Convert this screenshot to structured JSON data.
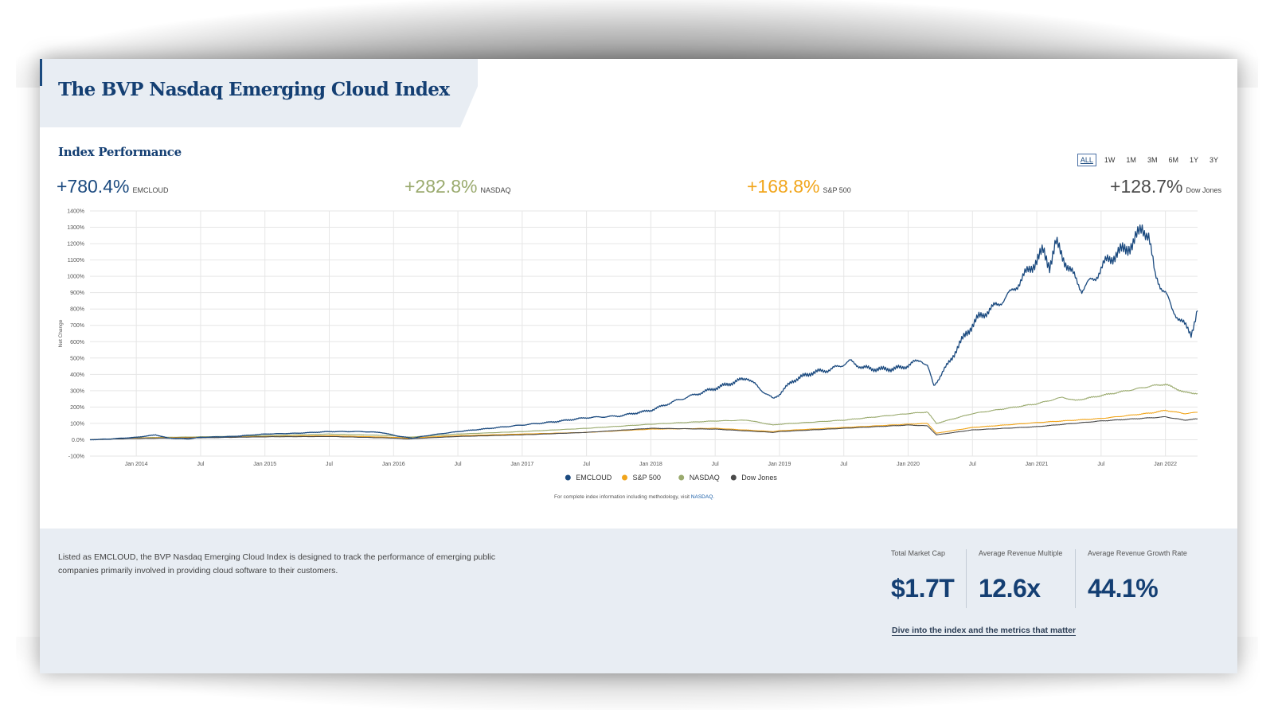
{
  "title": "The BVP Nasdaq Emerging Cloud Index",
  "section_title": "Index Performance",
  "ranges": [
    "ALL",
    "1W",
    "1M",
    "3M",
    "6M",
    "1Y",
    "3Y"
  ],
  "active_range": "ALL",
  "summary": [
    {
      "value": "+780.4%",
      "label": "EMCLOUD",
      "color": "#1b4a7f"
    },
    {
      "value": "+282.8%",
      "label": "NASDAQ",
      "color": "#9aaa6e"
    },
    {
      "value": "+168.8%",
      "label": "S&P 500",
      "color": "#f1a51b"
    },
    {
      "value": "+128.7%",
      "label": "Dow Jones",
      "color": "#4a4a4a"
    }
  ],
  "footnote": {
    "text": "For complete index information including methodology, visit ",
    "link": "NASDAQ."
  },
  "description": "Listed as EMCLOUD, the BVP Nasdaq Emerging Cloud Index is designed to track the performance of emerging public companies primarily involved in providing cloud software to their customers.",
  "metrics": [
    {
      "label": "Total Market Cap",
      "value": "$1.7T"
    },
    {
      "label": "Average Revenue Multiple",
      "value": "12.6x"
    },
    {
      "label": "Average Revenue Growth Rate",
      "value": "44.1%"
    }
  ],
  "cta": "Dive into the index and the metrics that matter",
  "chart_data": {
    "type": "line",
    "ylabel": "Net Change",
    "ylim": [
      -100,
      1400
    ],
    "yticks": [
      "1400%",
      "1300%",
      "1200%",
      "1100%",
      "1000%",
      "900%",
      "800%",
      "700%",
      "600%",
      "500%",
      "400%",
      "300%",
      "200%",
      "100%",
      "0.0%",
      "-100%"
    ],
    "xlim": [
      2013.64,
      2022.25
    ],
    "xticks": [
      {
        "x": 2014.0,
        "label": "Jan 2014"
      },
      {
        "x": 2014.5,
        "label": "Jul"
      },
      {
        "x": 2015.0,
        "label": "Jan 2015"
      },
      {
        "x": 2015.5,
        "label": "Jul"
      },
      {
        "x": 2016.0,
        "label": "Jan 2016"
      },
      {
        "x": 2016.5,
        "label": "Jul"
      },
      {
        "x": 2017.0,
        "label": "Jan 2017"
      },
      {
        "x": 2017.5,
        "label": "Jul"
      },
      {
        "x": 2018.0,
        "label": "Jan 2018"
      },
      {
        "x": 2018.5,
        "label": "Jul"
      },
      {
        "x": 2019.0,
        "label": "Jan 2019"
      },
      {
        "x": 2019.5,
        "label": "Jul"
      },
      {
        "x": 2020.0,
        "label": "Jan 2020"
      },
      {
        "x": 2020.5,
        "label": "Jul"
      },
      {
        "x": 2021.0,
        "label": "Jan 2021"
      },
      {
        "x": 2021.5,
        "label": "Jul"
      },
      {
        "x": 2022.0,
        "label": "Jan 2022"
      }
    ],
    "grid": true,
    "legend_position": "bottom-center",
    "series": [
      {
        "name": "EMCLOUD",
        "color": "#1b4a7f",
        "points": [
          [
            2013.64,
            0
          ],
          [
            2013.8,
            5
          ],
          [
            2014.0,
            15
          ],
          [
            2014.15,
            30
          ],
          [
            2014.25,
            10
          ],
          [
            2014.4,
            5
          ],
          [
            2014.5,
            15
          ],
          [
            2014.75,
            20
          ],
          [
            2015.0,
            35
          ],
          [
            2015.25,
            40
          ],
          [
            2015.5,
            50
          ],
          [
            2015.75,
            50
          ],
          [
            2015.9,
            45
          ],
          [
            2016.05,
            20
          ],
          [
            2016.15,
            10
          ],
          [
            2016.3,
            30
          ],
          [
            2016.5,
            50
          ],
          [
            2016.75,
            70
          ],
          [
            2017.0,
            90
          ],
          [
            2017.25,
            110
          ],
          [
            2017.5,
            135
          ],
          [
            2017.75,
            145
          ],
          [
            2018.0,
            180
          ],
          [
            2018.2,
            240
          ],
          [
            2018.4,
            290
          ],
          [
            2018.6,
            340
          ],
          [
            2018.75,
            380
          ],
          [
            2018.85,
            310
          ],
          [
            2018.95,
            250
          ],
          [
            2019.0,
            280
          ],
          [
            2019.1,
            360
          ],
          [
            2019.25,
            410
          ],
          [
            2019.4,
            430
          ],
          [
            2019.55,
            480
          ],
          [
            2019.65,
            440
          ],
          [
            2019.8,
            430
          ],
          [
            2019.95,
            440
          ],
          [
            2020.1,
            490
          ],
          [
            2020.15,
            450
          ],
          [
            2020.2,
            330
          ],
          [
            2020.3,
            450
          ],
          [
            2020.45,
            650
          ],
          [
            2020.55,
            750
          ],
          [
            2020.7,
            830
          ],
          [
            2020.8,
            900
          ],
          [
            2020.95,
            1050
          ],
          [
            2021.05,
            1150
          ],
          [
            2021.1,
            1070
          ],
          [
            2021.15,
            1200
          ],
          [
            2021.25,
            1050
          ],
          [
            2021.35,
            920
          ],
          [
            2021.45,
            990
          ],
          [
            2021.55,
            1100
          ],
          [
            2021.65,
            1150
          ],
          [
            2021.75,
            1200
          ],
          [
            2021.82,
            1300
          ],
          [
            2021.87,
            1250
          ],
          [
            2021.92,
            1000
          ],
          [
            2022.0,
            900
          ],
          [
            2022.05,
            800
          ],
          [
            2022.15,
            700
          ],
          [
            2022.2,
            650
          ],
          [
            2022.25,
            790
          ]
        ]
      },
      {
        "name": "S&P 500",
        "color": "#f1a51b",
        "points": [
          [
            2013.64,
            0
          ],
          [
            2014.0,
            10
          ],
          [
            2014.5,
            15
          ],
          [
            2015.0,
            20
          ],
          [
            2015.5,
            25
          ],
          [
            2016.0,
            15
          ],
          [
            2016.1,
            10
          ],
          [
            2016.5,
            25
          ],
          [
            2017.0,
            35
          ],
          [
            2017.5,
            45
          ],
          [
            2018.0,
            65
          ],
          [
            2018.5,
            70
          ],
          [
            2018.95,
            50
          ],
          [
            2019.0,
            55
          ],
          [
            2019.5,
            75
          ],
          [
            2020.0,
            95
          ],
          [
            2020.15,
            100
          ],
          [
            2020.22,
            40
          ],
          [
            2020.5,
            75
          ],
          [
            2021.0,
            105
          ],
          [
            2021.5,
            130
          ],
          [
            2021.9,
            165
          ],
          [
            2022.0,
            180
          ],
          [
            2022.15,
            160
          ],
          [
            2022.25,
            168
          ]
        ]
      },
      {
        "name": "NASDAQ",
        "color": "#9aaa6e",
        "points": [
          [
            2013.64,
            0
          ],
          [
            2014.0,
            12
          ],
          [
            2014.5,
            18
          ],
          [
            2015.0,
            25
          ],
          [
            2015.5,
            35
          ],
          [
            2016.0,
            25
          ],
          [
            2016.1,
            15
          ],
          [
            2016.5,
            35
          ],
          [
            2017.0,
            50
          ],
          [
            2017.5,
            70
          ],
          [
            2018.0,
            95
          ],
          [
            2018.5,
            115
          ],
          [
            2018.75,
            120
          ],
          [
            2018.95,
            90
          ],
          [
            2019.0,
            95
          ],
          [
            2019.5,
            120
          ],
          [
            2020.0,
            160
          ],
          [
            2020.15,
            170
          ],
          [
            2020.22,
            100
          ],
          [
            2020.5,
            160
          ],
          [
            2021.0,
            220
          ],
          [
            2021.2,
            260
          ],
          [
            2021.3,
            240
          ],
          [
            2021.5,
            270
          ],
          [
            2021.9,
            330
          ],
          [
            2022.0,
            340
          ],
          [
            2022.15,
            290
          ],
          [
            2022.25,
            283
          ]
        ]
      },
      {
        "name": "Dow Jones",
        "color": "#4a4a4a",
        "points": [
          [
            2013.64,
            0
          ],
          [
            2014.0,
            8
          ],
          [
            2014.5,
            12
          ],
          [
            2015.0,
            18
          ],
          [
            2015.5,
            20
          ],
          [
            2016.0,
            10
          ],
          [
            2016.1,
            5
          ],
          [
            2016.5,
            20
          ],
          [
            2017.0,
            30
          ],
          [
            2017.5,
            45
          ],
          [
            2018.0,
            70
          ],
          [
            2018.5,
            65
          ],
          [
            2018.95,
            45
          ],
          [
            2019.0,
            50
          ],
          [
            2019.5,
            70
          ],
          [
            2020.0,
            90
          ],
          [
            2020.15,
            85
          ],
          [
            2020.22,
            30
          ],
          [
            2020.5,
            60
          ],
          [
            2021.0,
            80
          ],
          [
            2021.5,
            115
          ],
          [
            2021.9,
            135
          ],
          [
            2022.0,
            140
          ],
          [
            2022.15,
            120
          ],
          [
            2022.25,
            128
          ]
        ]
      }
    ]
  }
}
